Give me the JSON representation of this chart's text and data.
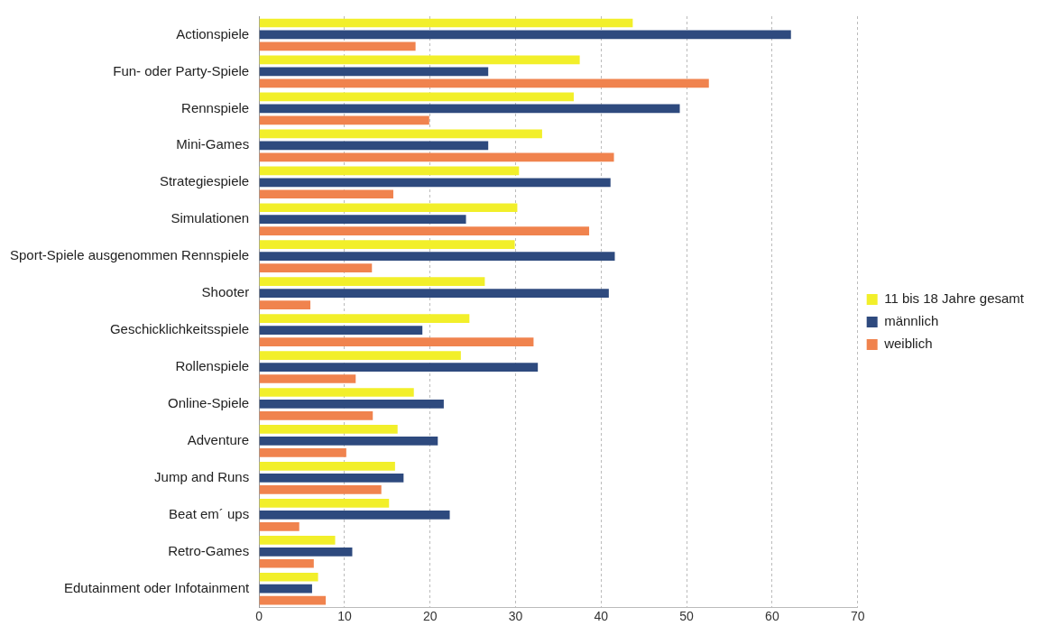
{
  "chart_data": {
    "type": "bar",
    "orientation": "horizontal",
    "categories": [
      "Actionspiele",
      "Fun- oder Party-Spiele",
      "Rennspiele",
      "Mini-Games",
      "Strategiespiele",
      "Simulationen",
      "Sport-Spiele ausgenommen Rennspiele",
      "Shooter",
      "Geschicklichkeitsspiele",
      "Rollenspiele",
      "Online-Spiele",
      "Adventure",
      "Jump and Runs",
      "Beat em´ ups",
      "Retro-Games",
      "Edutainment oder Infotainment"
    ],
    "series": [
      {
        "name": "11 bis 18 Jahre gesamt",
        "color": "#f2ef2a",
        "values": [
          43.7,
          37.5,
          36.8,
          33.1,
          30.4,
          30.2,
          29.9,
          26.4,
          24.6,
          23.6,
          18.1,
          16.2,
          15.9,
          15.2,
          8.9,
          6.9
        ]
      },
      {
        "name": "männlich",
        "color": "#2e4a7e",
        "values": [
          62.2,
          26.8,
          49.2,
          26.8,
          41.1,
          24.2,
          41.6,
          40.9,
          19.1,
          32.6,
          21.6,
          20.9,
          16.9,
          22.3,
          10.9,
          6.2
        ]
      },
      {
        "name": "weiblich",
        "color": "#f0834e",
        "values": [
          18.3,
          52.6,
          19.9,
          41.5,
          15.7,
          38.6,
          13.2,
          6.0,
          32.1,
          11.3,
          13.3,
          10.2,
          14.3,
          4.7,
          6.4,
          7.8
        ]
      }
    ],
    "xlim": [
      0,
      70
    ],
    "xticks": [
      0,
      10,
      20,
      30,
      40,
      50,
      60,
      70
    ],
    "grid": "x",
    "legend": "right"
  }
}
